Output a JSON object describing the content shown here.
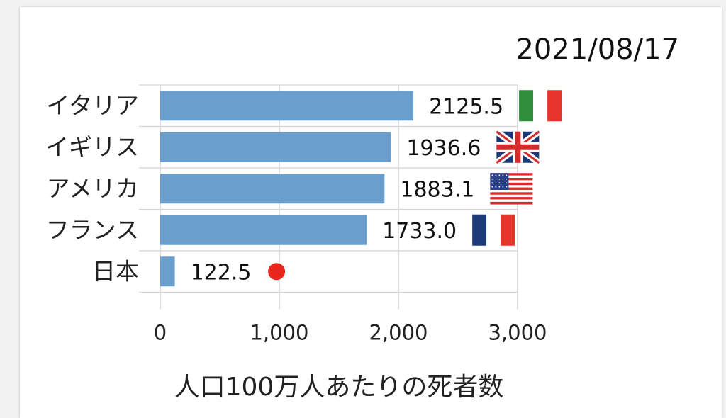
{
  "chart_data": {
    "type": "bar",
    "orientation": "horizontal",
    "title": "2021/08/17",
    "xlabel": "人口100万人あたりの死者数",
    "ylabel": "",
    "categories": [
      "イタリア",
      "イギリス",
      "アメリカ",
      "フランス",
      "日本"
    ],
    "values": [
      2125.5,
      1936.6,
      1883.1,
      1733.0,
      122.5
    ],
    "value_labels": [
      "2125.5",
      "1936.6",
      "1883.1",
      "1733.0",
      "122.5"
    ],
    "flag_icons": [
      "italy-flag-icon",
      "uk-flag-icon",
      "usa-flag-icon",
      "france-flag-icon",
      "japan-flag-icon"
    ],
    "xlim": [
      0,
      3000
    ],
    "xticks": [
      0,
      1000,
      2000,
      3000
    ],
    "xtick_labels": [
      "0",
      "1,000",
      "2,000",
      "3,000"
    ],
    "grid": true,
    "bar_color": "#6a9fcd"
  }
}
